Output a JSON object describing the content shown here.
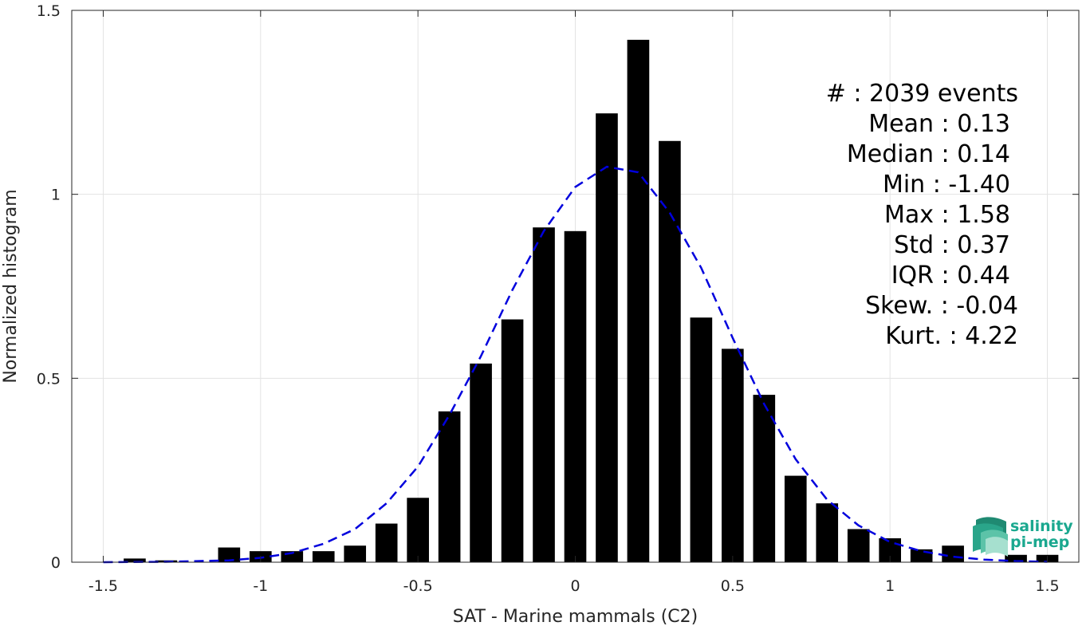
{
  "chart_data": {
    "type": "bar",
    "xlabel": "SAT - Marine mammals (C2)",
    "ylabel": "Normalized histogram",
    "xlim": [
      -1.6,
      1.6
    ],
    "ylim": [
      0,
      1.5
    ],
    "xticks": [
      -1.5,
      -1,
      -0.5,
      0,
      0.5,
      1,
      1.5
    ],
    "xtick_labels": [
      "-1.5",
      "-1",
      "-0.5",
      "0",
      "0.5",
      "1",
      "1.5"
    ],
    "yticks": [
      0,
      0.5,
      1,
      1.5
    ],
    "ytick_labels": [
      "0",
      "0.5",
      "1",
      "1.5"
    ],
    "grid": true,
    "bin_width": 0.1,
    "bar_width": 0.07,
    "bar_color": "#000000",
    "bins": [
      {
        "x": -1.4,
        "y": 0.01
      },
      {
        "x": -1.3,
        "y": 0.005
      },
      {
        "x": -1.1,
        "y": 0.04
      },
      {
        "x": -1.0,
        "y": 0.03
      },
      {
        "x": -0.9,
        "y": 0.03
      },
      {
        "x": -0.8,
        "y": 0.03
      },
      {
        "x": -0.7,
        "y": 0.045
      },
      {
        "x": -0.6,
        "y": 0.105
      },
      {
        "x": -0.5,
        "y": 0.175
      },
      {
        "x": -0.4,
        "y": 0.41
      },
      {
        "x": -0.3,
        "y": 0.54
      },
      {
        "x": -0.2,
        "y": 0.66
      },
      {
        "x": -0.1,
        "y": 0.91
      },
      {
        "x": 0.0,
        "y": 0.9
      },
      {
        "x": 0.1,
        "y": 1.22
      },
      {
        "x": 0.2,
        "y": 1.42
      },
      {
        "x": 0.3,
        "y": 1.145
      },
      {
        "x": 0.4,
        "y": 0.665
      },
      {
        "x": 0.5,
        "y": 0.58
      },
      {
        "x": 0.6,
        "y": 0.455
      },
      {
        "x": 0.7,
        "y": 0.235
      },
      {
        "x": 0.8,
        "y": 0.16
      },
      {
        "x": 0.9,
        "y": 0.09
      },
      {
        "x": 1.0,
        "y": 0.065
      },
      {
        "x": 1.1,
        "y": 0.035
      },
      {
        "x": 1.2,
        "y": 0.045
      },
      {
        "x": 1.4,
        "y": 0.02
      },
      {
        "x": 1.5,
        "y": 0.02
      }
    ],
    "fit_curve": {
      "color": "#0000dd",
      "style": "dashed",
      "x": [
        -1.5,
        -1.3,
        -1.1,
        -1.0,
        -0.9,
        -0.8,
        -0.7,
        -0.6,
        -0.5,
        -0.4,
        -0.3,
        -0.2,
        -0.1,
        0.0,
        0.1,
        0.2,
        0.3,
        0.4,
        0.5,
        0.6,
        0.7,
        0.8,
        0.9,
        1.0,
        1.1,
        1.2,
        1.3,
        1.4,
        1.5
      ],
      "y": [
        0.0,
        0.001,
        0.005,
        0.012,
        0.025,
        0.05,
        0.09,
        0.16,
        0.26,
        0.4,
        0.56,
        0.74,
        0.9,
        1.02,
        1.075,
        1.06,
        0.95,
        0.8,
        0.61,
        0.43,
        0.28,
        0.17,
        0.1,
        0.055,
        0.03,
        0.015,
        0.007,
        0.003,
        0.001
      ]
    },
    "stats": [
      "#  : 2039 events",
      "Mean : 0.13",
      "Median : 0.14",
      "Min : -1.40",
      "Max : 1.58",
      "Std : 0.37",
      "IQR : 0.44",
      "Skew. : -0.04",
      "Kurt. : 4.22"
    ]
  },
  "logo": {
    "line1": "salinity",
    "line2": "pi-mep",
    "color": "#1aa88f",
    "icon": "salinity-wave-icon"
  }
}
